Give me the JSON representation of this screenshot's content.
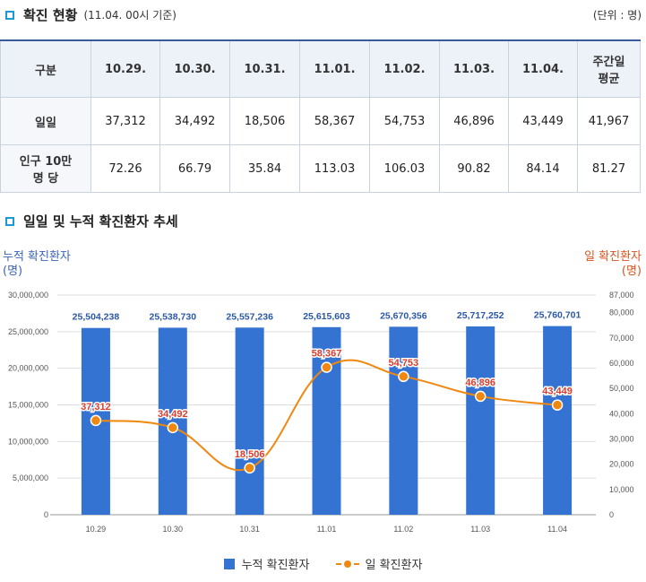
{
  "header": {
    "title": "확진 현황",
    "subtitle": "(11.04. 00시 기준)",
    "unit": "(단위 : 명)"
  },
  "table": {
    "columns": [
      "구분",
      "10.29.",
      "10.30.",
      "10.31.",
      "11.01.",
      "11.02.",
      "11.03.",
      "11.04.",
      "주간일\n평균"
    ],
    "rows": [
      {
        "label": "일일",
        "cells": [
          "37,312",
          "34,492",
          "18,506",
          "58,367",
          "54,753",
          "46,896",
          "43,449",
          "41,967"
        ]
      },
      {
        "label": "인구 10만\n명 당",
        "cells": [
          "72.26",
          "66.79",
          "35.84",
          "113.03",
          "106.03",
          "90.82",
          "84.14",
          "81.27"
        ]
      }
    ]
  },
  "section2": {
    "title": "일일 및 누적 확진환자 추세"
  },
  "axes": {
    "left_label": "누적 확진환자",
    "left_unit": "(명)",
    "right_label": "일 확진환자",
    "right_unit": "(명)"
  },
  "chart_data": {
    "type": "bar+line",
    "categories": [
      "10.29",
      "10.30",
      "10.31",
      "11.01",
      "11.02",
      "11.03",
      "11.04"
    ],
    "series": [
      {
        "name": "누적 확진환자",
        "type": "bar",
        "axis": "left",
        "values": [
          25504238,
          25538730,
          25557236,
          25615603,
          25670356,
          25717252,
          25760701
        ],
        "labels": [
          "25,504,238",
          "25,538,730",
          "25,557,236",
          "25,615,603",
          "25,670,356",
          "25,717,252",
          "25,760,701"
        ]
      },
      {
        "name": "일 확진환자",
        "type": "line",
        "axis": "right",
        "values": [
          37312,
          34492,
          18506,
          58367,
          54753,
          46896,
          43449
        ],
        "labels": [
          "37,312",
          "34,492",
          "18,506",
          "58,367",
          "54,753",
          "46,896",
          "43,449"
        ]
      }
    ],
    "left_axis": {
      "min": 0,
      "max": 30000000,
      "ticks": [
        0,
        5000000,
        10000000,
        15000000,
        20000000,
        25000000,
        30000000
      ],
      "tick_labels": [
        "0",
        "5,000,000",
        "10,000,000",
        "15,000,000",
        "20,000,000",
        "25,000,000",
        "30,000,000"
      ]
    },
    "right_axis": {
      "min": 0,
      "max": 87000,
      "ticks": [
        0,
        10000,
        20000,
        30000,
        40000,
        50000,
        60000,
        70000,
        80000,
        87000
      ],
      "tick_labels": [
        "0",
        "10,000",
        "20,000",
        "30,000",
        "40,000",
        "50,000",
        "60,000",
        "70,000",
        "80,000",
        "87,000"
      ]
    },
    "colors": {
      "bar": "#3573d3",
      "bar_label": "#2b58a8",
      "line": "#f0870f",
      "line_label": "#d93d2c",
      "grid": "#dddddd"
    }
  },
  "legend": {
    "bar_label": "누적 확진환자",
    "line_label": "일 확진환자"
  }
}
